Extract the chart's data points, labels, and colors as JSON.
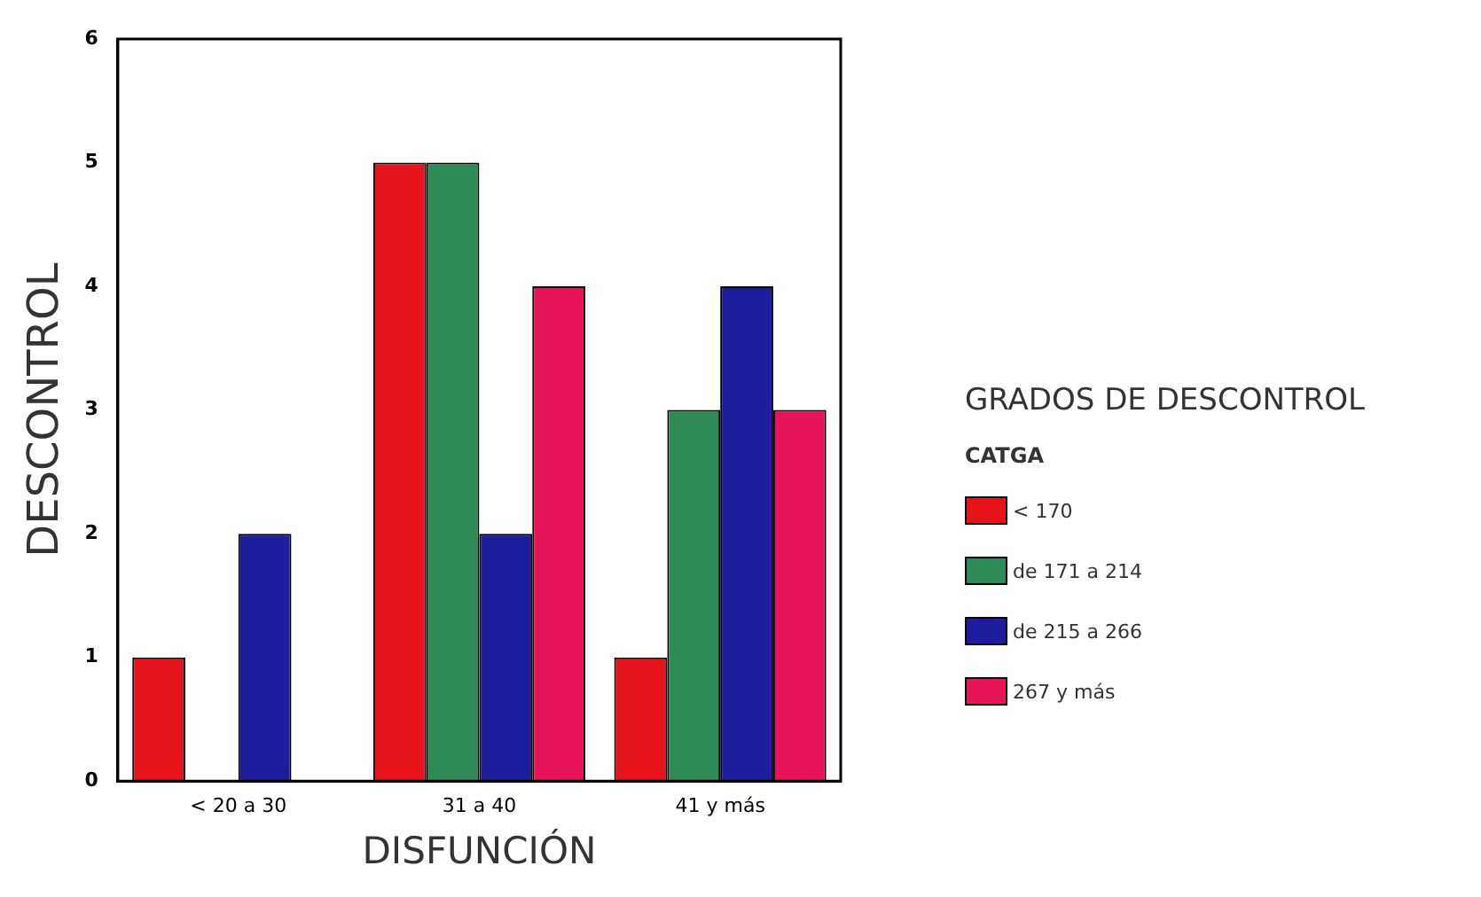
{
  "chart_data": {
    "type": "bar",
    "xlabel": "DISFUNCIÓN",
    "ylabel": "DESCONTROL",
    "title": "GRADOS DE DESCONTROL",
    "legend_title": "CATGA",
    "categories": [
      "< 20 a 30",
      "31 a 40",
      "41 y más"
    ],
    "series": [
      {
        "name": "< 170",
        "color": "#e8141c",
        "values": [
          1,
          5,
          1
        ]
      },
      {
        "name": "de 171 a 214",
        "color": "#2e8b57",
        "values": [
          null,
          5,
          3
        ]
      },
      {
        "name": "de 215 a 266",
        "color": "#1c1c9c",
        "values": [
          2,
          2,
          4
        ]
      },
      {
        "name": "267 y más",
        "color": "#e8145a",
        "values": [
          null,
          4,
          3
        ]
      }
    ],
    "ylim": [
      0,
      6
    ],
    "yticks": [
      0,
      1,
      2,
      3,
      4,
      5,
      6
    ],
    "grid": false,
    "legend": "right"
  }
}
